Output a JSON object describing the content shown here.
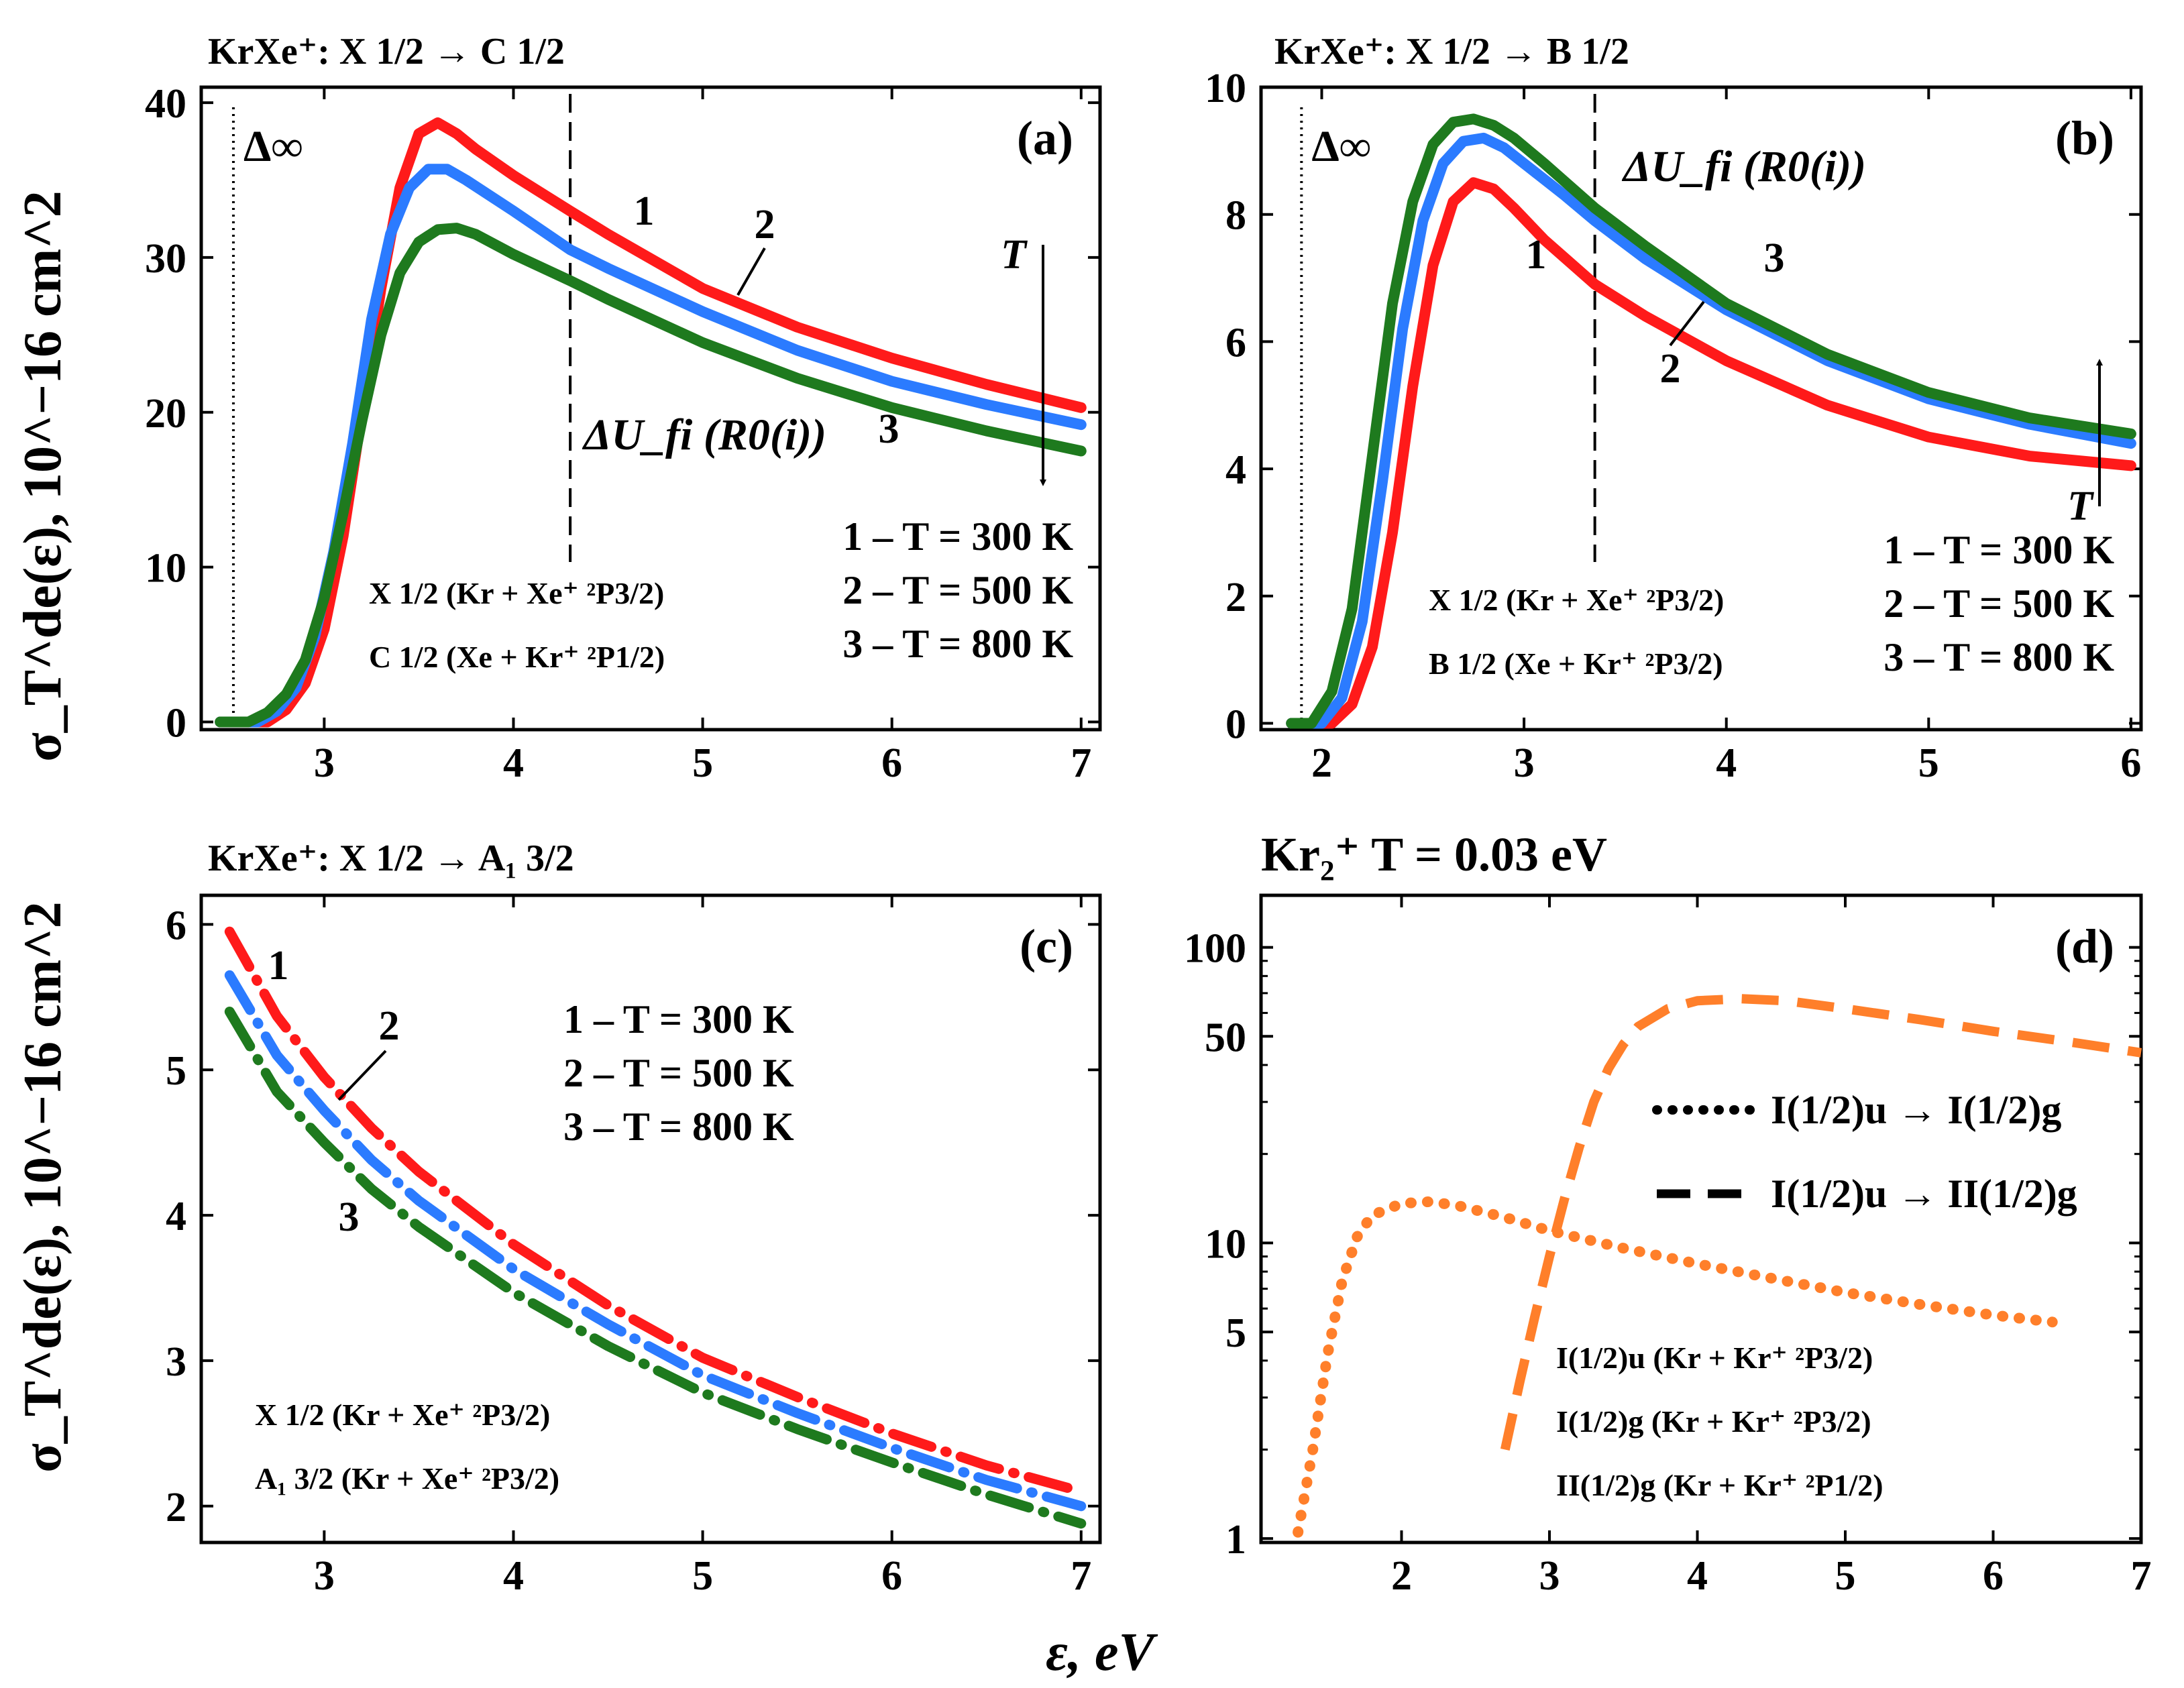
{
  "figure": {
    "x_axis_label": "ε, eV",
    "y_axis_label": "σ_T^de(ε), 10^−16 cm^2"
  },
  "chart_data": [
    {
      "panel": "a",
      "type": "line",
      "title": "KrXe⁺: X 1/2 → C 1/2",
      "panel_label": "(a)",
      "xlim": [
        2.35,
        7.1
      ],
      "ylim": [
        -0.5,
        41
      ],
      "xticks": [
        "3",
        "4",
        "5",
        "6",
        "7"
      ],
      "yticks": [
        "0",
        "10",
        "20",
        "30",
        "40"
      ],
      "delta_inf_x": 2.52,
      "delta_inf_label": "Δ∞",
      "dashed_x": 4.3,
      "dashed_label": "ΔU_fi (R0(i))",
      "legend": [
        "1 – T = 300 K",
        "2 – T = 500 K",
        "3 – T = 800 K"
      ],
      "states": [
        "X 1/2 (Kr + Xe⁺ ²P3/2)",
        "C 1/2 (Xe + Kr⁺ ²P1/2)"
      ],
      "arrow_label": "T",
      "arrow_direction": "down",
      "curve_labels": [
        "1",
        "2",
        "3"
      ],
      "series": [
        {
          "name": "1 – T = 300 K",
          "color": "#ff1a1a",
          "x": [
            2.45,
            2.7,
            2.8,
            2.9,
            3.0,
            3.1,
            3.2,
            3.3,
            3.4,
            3.5,
            3.6,
            3.7,
            3.8,
            4.0,
            4.3,
            4.5,
            5.0,
            5.5,
            6.0,
            6.5,
            7.0
          ],
          "y": [
            0,
            0,
            0.8,
            2.5,
            6,
            12,
            20,
            28,
            34.5,
            38,
            38.7,
            38,
            37,
            35.3,
            33,
            31.5,
            28,
            25.5,
            23.5,
            21.8,
            20.3
          ]
        },
        {
          "name": "2 – T = 500 K",
          "color": "#2b7bff",
          "x": [
            2.45,
            2.65,
            2.75,
            2.85,
            2.95,
            3.05,
            3.15,
            3.25,
            3.35,
            3.45,
            3.55,
            3.65,
            3.75,
            4.0,
            4.3,
            4.5,
            5.0,
            5.5,
            6.0,
            6.5,
            7.0
          ],
          "y": [
            0,
            0,
            0.7,
            2.2,
            5.5,
            11,
            18,
            26,
            31.5,
            34.5,
            35.7,
            35.7,
            35,
            33,
            30.5,
            29.3,
            26.5,
            24,
            22,
            20.5,
            19.2
          ]
        },
        {
          "name": "3 – T = 800 K",
          "color": "#1e7a1e",
          "x": [
            2.45,
            2.6,
            2.7,
            2.8,
            2.9,
            3.0,
            3.1,
            3.2,
            3.3,
            3.4,
            3.5,
            3.6,
            3.7,
            3.8,
            4.0,
            4.3,
            4.5,
            5.0,
            5.5,
            6.0,
            6.5,
            7.0
          ],
          "y": [
            0,
            0,
            0.6,
            1.8,
            4,
            8,
            13.5,
            19.5,
            25,
            29,
            31,
            31.8,
            31.9,
            31.5,
            30.2,
            28.5,
            27.3,
            24.5,
            22.2,
            20.3,
            18.8,
            17.5
          ]
        }
      ]
    },
    {
      "panel": "b",
      "type": "line",
      "title": "KrXe⁺: X 1/2 → B 1/2",
      "panel_label": "(b)",
      "xlim": [
        1.7,
        6.05
      ],
      "ylim": [
        -0.1,
        10
      ],
      "xticks": [
        "2",
        "3",
        "4",
        "5",
        "6"
      ],
      "yticks": [
        "0",
        "2",
        "4",
        "6",
        "8",
        "10"
      ],
      "delta_inf_x": 1.9,
      "delta_inf_label": "Δ∞",
      "dashed_x": 3.35,
      "dashed_label": "ΔU_fi (R0(i))",
      "legend": [
        "1 – T = 300 K",
        "2 – T = 500 K",
        "3 – T = 800 K"
      ],
      "states": [
        "X 1/2 (Kr + Xe⁺ ²P3/2)",
        "B 1/2 (Xe + Kr⁺ ²P3/2)"
      ],
      "arrow_label": "T",
      "arrow_direction": "up",
      "curve_labels": [
        "1",
        "2",
        "3"
      ],
      "series": [
        {
          "name": "1 – T = 300 K",
          "color": "#ff1a1a",
          "x": [
            1.85,
            2.05,
            2.15,
            2.25,
            2.35,
            2.45,
            2.55,
            2.65,
            2.75,
            2.85,
            2.95,
            3.1,
            3.35,
            3.6,
            4.0,
            4.5,
            5.0,
            5.5,
            6.0
          ],
          "y": [
            0,
            0,
            0.3,
            1.2,
            3,
            5.3,
            7.2,
            8.2,
            8.5,
            8.4,
            8.1,
            7.6,
            6.9,
            6.4,
            5.7,
            5.0,
            4.5,
            4.2,
            4.05
          ]
        },
        {
          "name": "2 – T = 500 K",
          "color": "#2b7bff",
          "x": [
            1.85,
            2.0,
            2.1,
            2.2,
            2.3,
            2.4,
            2.5,
            2.6,
            2.7,
            2.8,
            2.9,
            3.0,
            3.2,
            3.35,
            3.6,
            4.0,
            4.5,
            5.0,
            5.5,
            6.0
          ],
          "y": [
            0,
            0,
            0.4,
            1.6,
            3.8,
            6.2,
            7.9,
            8.8,
            9.15,
            9.2,
            9.05,
            8.8,
            8.3,
            7.9,
            7.3,
            6.5,
            5.7,
            5.1,
            4.7,
            4.4
          ]
        },
        {
          "name": "3 – T = 800 K",
          "color": "#1e7a1e",
          "x": [
            1.85,
            1.95,
            2.05,
            2.15,
            2.25,
            2.35,
            2.45,
            2.55,
            2.65,
            2.75,
            2.85,
            2.95,
            3.1,
            3.35,
            3.6,
            4.0,
            4.5,
            5.0,
            5.5,
            6.0
          ],
          "y": [
            0,
            0,
            0.5,
            1.8,
            4.2,
            6.6,
            8.2,
            9.1,
            9.45,
            9.5,
            9.4,
            9.2,
            8.8,
            8.1,
            7.5,
            6.6,
            5.8,
            5.2,
            4.8,
            4.55
          ]
        }
      ]
    },
    {
      "panel": "c",
      "type": "line",
      "title": "KrXe⁺: X 1/2 → A₁ 3/2",
      "panel_label": "(c)",
      "xlim": [
        2.35,
        7.1
      ],
      "ylim": [
        1.75,
        6.2
      ],
      "xticks": [
        "3",
        "4",
        "5",
        "6",
        "7"
      ],
      "yticks": [
        "2",
        "3",
        "4",
        "5",
        "6"
      ],
      "legend": [
        "1 – T = 300 K",
        "2 – T = 500 K",
        "3 – T = 800 K"
      ],
      "states": [
        "X  1/2 (Kr + Xe⁺ ²P3/2)",
        "A₁ 3/2 (Kr + Xe⁺ ²P3/2)"
      ],
      "curve_labels": [
        "1",
        "2",
        "3"
      ],
      "series": [
        {
          "name": "1 – T = 300 K",
          "color": "#ff1a1a",
          "x": [
            2.5,
            2.75,
            3.0,
            3.25,
            3.5,
            4.0,
            4.5,
            5.0,
            5.5,
            6.0,
            6.5,
            7.0
          ],
          "y": [
            5.95,
            5.37,
            4.95,
            4.6,
            4.3,
            3.8,
            3.38,
            3.02,
            2.75,
            2.5,
            2.28,
            2.1
          ]
        },
        {
          "name": "2 – T = 500 K",
          "color": "#2b7bff",
          "x": [
            2.5,
            2.75,
            3.0,
            3.25,
            3.5,
            4.0,
            4.5,
            5.0,
            5.5,
            6.0,
            6.5,
            7.0
          ],
          "y": [
            5.65,
            5.1,
            4.72,
            4.38,
            4.1,
            3.63,
            3.25,
            2.9,
            2.64,
            2.4,
            2.18,
            2.0
          ]
        },
        {
          "name": "3 – T = 800 K",
          "color": "#1e7a1e",
          "x": [
            2.5,
            2.75,
            3.0,
            3.25,
            3.5,
            4.0,
            4.5,
            5.0,
            5.5,
            6.0,
            6.5,
            7.0
          ],
          "y": [
            5.4,
            4.85,
            4.5,
            4.18,
            3.92,
            3.47,
            3.1,
            2.78,
            2.53,
            2.3,
            2.08,
            1.88
          ]
        }
      ]
    },
    {
      "panel": "d",
      "type": "line",
      "yscale": "log",
      "title": "Kr₂⁺  T = 0.03 eV",
      "panel_label": "(d)",
      "xlim": [
        1.05,
        7.0
      ],
      "ylim": [
        0.97,
        150
      ],
      "xticks": [
        "2",
        "3",
        "4",
        "5",
        "6",
        "7"
      ],
      "yticks": [
        "1",
        "5",
        "10",
        "50",
        "100"
      ],
      "legend": [
        "I(1/2)u → I(1/2)g",
        "I(1/2)u → II(1/2)g"
      ],
      "states": [
        "I(1/2)u  (Kr + Kr⁺ ²P3/2)",
        "I(1/2)g  (Kr + Kr⁺ ²P3/2)",
        "II(1/2)g (Kr + Kr⁺ ²P1/2)"
      ],
      "series": [
        {
          "name": "I(1/2)u → I(1/2)g",
          "color": "#ff7f2a",
          "style": "dotted",
          "x": [
            1.3,
            1.4,
            1.5,
            1.6,
            1.7,
            1.8,
            2.0,
            2.2,
            2.4,
            2.7,
            3.0,
            3.5,
            4.0,
            4.5,
            5.0,
            5.5,
            6.0,
            6.4
          ],
          "y": [
            1.05,
            2.0,
            4.2,
            7.5,
            10.5,
            12.4,
            13.6,
            13.8,
            13.3,
            12.2,
            11.0,
            9.6,
            8.5,
            7.6,
            6.8,
            6.2,
            5.7,
            5.4
          ]
        },
        {
          "name": "I(1/2)u → II(1/2)g",
          "color": "#ff7f2a",
          "style": "dashed",
          "x": [
            2.7,
            2.8,
            2.9,
            3.0,
            3.1,
            3.2,
            3.3,
            3.4,
            3.5,
            3.6,
            3.8,
            4.0,
            4.3,
            4.6,
            5.0,
            5.5,
            6.0,
            6.5,
            7.0
          ],
          "y": [
            2.0,
            3.4,
            5.6,
            9.0,
            14,
            21,
            30,
            39,
            47,
            54,
            62,
            66,
            67,
            66,
            62,
            57,
            52,
            48,
            44
          ]
        }
      ]
    }
  ]
}
